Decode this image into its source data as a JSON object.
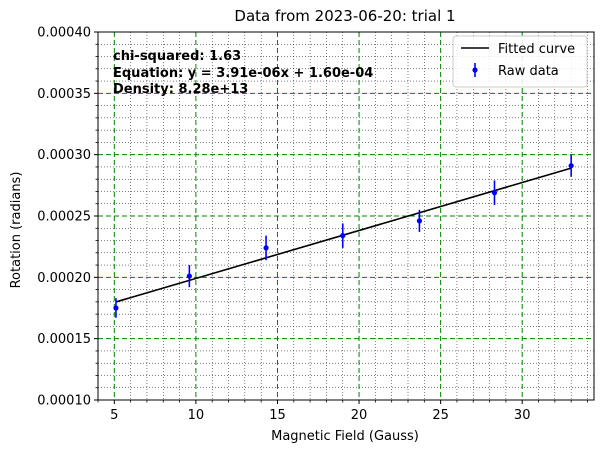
{
  "chart_data": {
    "type": "scatter",
    "title": "Data from 2023-06-20: trial 1",
    "xlabel": "Magnetic Field (Gauss)",
    "ylabel": "Rotation (radians)",
    "xlim": [
      4.0,
      34.4
    ],
    "ylim": [
      0.0001,
      0.0004
    ],
    "x_ticks": [
      5,
      10,
      15,
      20,
      25,
      30
    ],
    "x_tick_labels": [
      "5",
      "10",
      "15",
      "20",
      "25",
      "30"
    ],
    "y_ticks": [
      0.0001,
      0.00015,
      0.0002,
      0.00025,
      0.0003,
      0.00035,
      0.0004
    ],
    "y_tick_labels": [
      "0.00010",
      "0.00015",
      "0.00020",
      "0.00025",
      "0.00030",
      "0.00035",
      "0.00040"
    ],
    "grid": true,
    "minor_grid": true,
    "legend_position": "top-right",
    "annotations": [
      "chi-squared: 1.63",
      "Equation: y = 3.91e-06x + 1.60e-04",
      "Density: 8.28e+13"
    ],
    "series": [
      {
        "name": "Raw data",
        "kind": "errorbar",
        "color": "#0000ff",
        "x": [
          5.1,
          9.6,
          14.3,
          19.0,
          23.7,
          28.3,
          33.0
        ],
        "y": [
          0.000175,
          0.000201,
          0.000224,
          0.000234,
          0.000246,
          0.000269,
          0.000291
        ],
        "yerr": [
          8e-06,
          9e-06,
          1e-05,
          1e-05,
          9e-06,
          1e-05,
          9e-06
        ]
      },
      {
        "name": "Fitted curve",
        "kind": "line",
        "color": "#000000",
        "slope": 3.91e-06,
        "intercept": 0.00016,
        "x_range": [
          5.1,
          33.0
        ]
      }
    ],
    "colors": {
      "major_grid": "#008000",
      "minor_grid": "#000000",
      "data": "#0000ff",
      "fit": "#000000"
    }
  }
}
